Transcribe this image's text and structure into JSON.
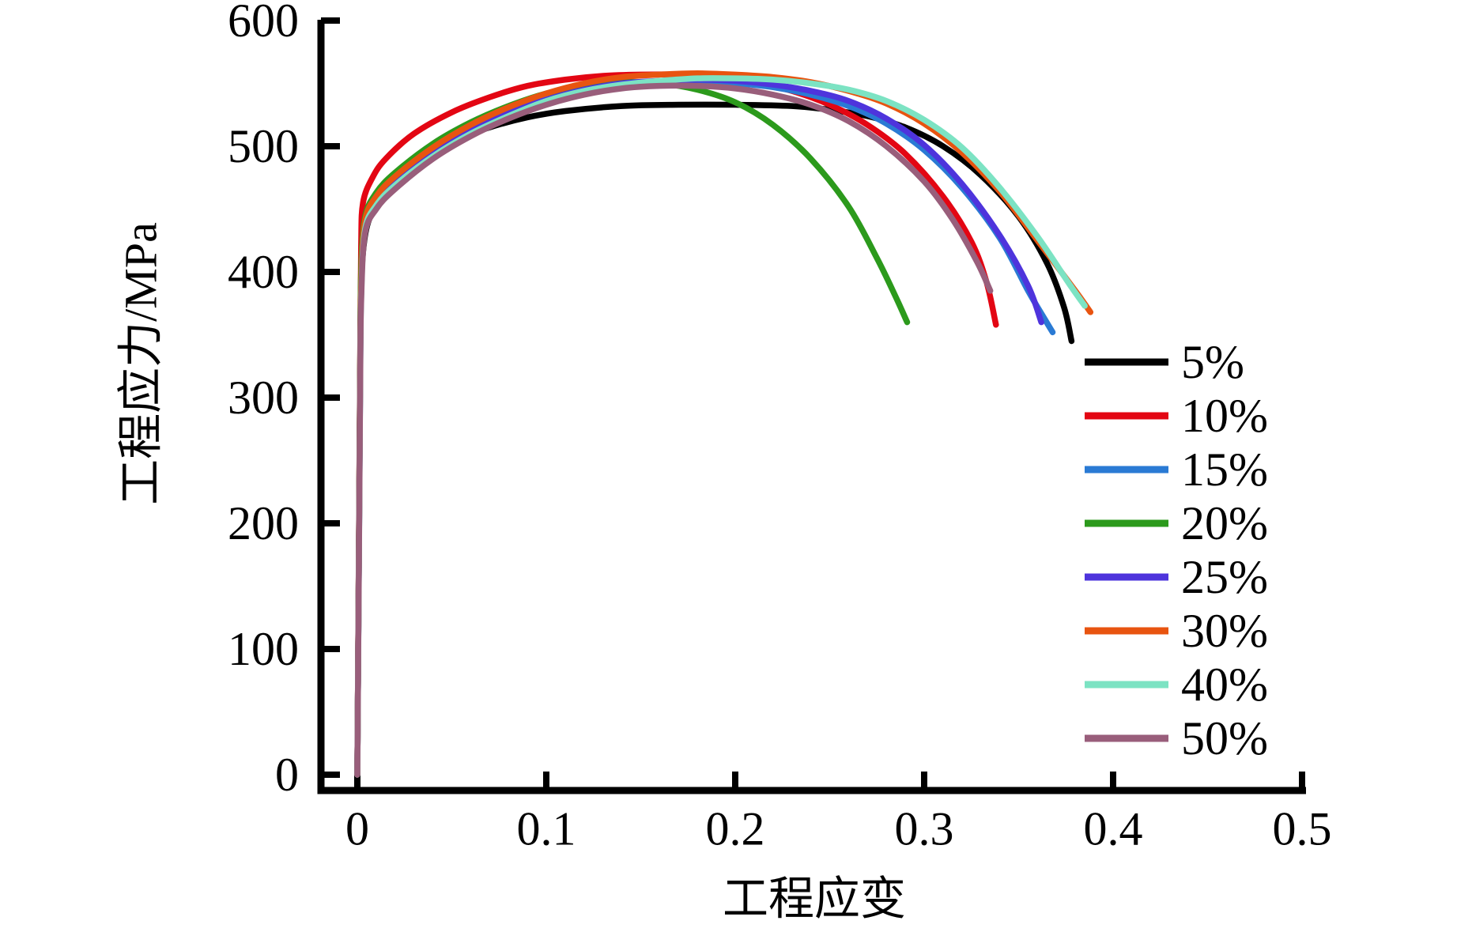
{
  "chart_data": {
    "type": "line",
    "title": "",
    "xlabel": "工程应变",
    "ylabel": "工程应力/MPa",
    "xlim": [
      0,
      0.5
    ],
    "ylim": [
      0,
      600
    ],
    "grid": false,
    "legend_position": "right-middle",
    "x_ticks": [
      0,
      0.1,
      0.2,
      0.3,
      0.4,
      0.5
    ],
    "x_tick_labels": [
      "0",
      "0.1",
      "0.2",
      "0.3",
      "0.4",
      "0.5"
    ],
    "y_ticks": [
      0,
      100,
      200,
      300,
      400,
      500,
      600
    ],
    "y_tick_labels": [
      "0",
      "100",
      "200",
      "300",
      "400",
      "500",
      "600"
    ],
    "series": [
      {
        "name": "5%",
        "color": "#000000",
        "points": [
          [
            0,
            0
          ],
          [
            0.001,
            215
          ],
          [
            0.0015,
            320
          ],
          [
            0.002,
            390
          ],
          [
            0.004,
            428
          ],
          [
            0.008,
            448
          ],
          [
            0.015,
            465
          ],
          [
            0.03,
            487
          ],
          [
            0.05,
            504
          ],
          [
            0.07,
            515
          ],
          [
            0.09,
            523
          ],
          [
            0.11,
            528
          ],
          [
            0.14,
            532
          ],
          [
            0.17,
            533
          ],
          [
            0.2,
            533
          ],
          [
            0.23,
            532
          ],
          [
            0.25,
            529
          ],
          [
            0.27,
            524
          ],
          [
            0.29,
            515
          ],
          [
            0.31,
            500
          ],
          [
            0.33,
            477
          ],
          [
            0.35,
            444
          ],
          [
            0.365,
            407
          ],
          [
            0.374,
            372
          ],
          [
            0.378,
            345
          ]
        ]
      },
      {
        "name": "10%",
        "color": "#e30613",
        "points": [
          [
            0,
            0
          ],
          [
            0.001,
            220
          ],
          [
            0.0015,
            330
          ],
          [
            0.002,
            420
          ],
          [
            0.003,
            455
          ],
          [
            0.008,
            475
          ],
          [
            0.015,
            490
          ],
          [
            0.03,
            510
          ],
          [
            0.05,
            527
          ],
          [
            0.07,
            539
          ],
          [
            0.09,
            548
          ],
          [
            0.11,
            553
          ],
          [
            0.13,
            556
          ],
          [
            0.15,
            557
          ],
          [
            0.17,
            557
          ],
          [
            0.19,
            555
          ],
          [
            0.21,
            551
          ],
          [
            0.23,
            544
          ],
          [
            0.25,
            533
          ],
          [
            0.27,
            517
          ],
          [
            0.29,
            494
          ],
          [
            0.31,
            460
          ],
          [
            0.325,
            424
          ],
          [
            0.333,
            392
          ],
          [
            0.338,
            358
          ]
        ]
      },
      {
        "name": "15%",
        "color": "#2a7ad4",
        "points": [
          [
            0,
            0
          ],
          [
            0.001,
            210
          ],
          [
            0.0015,
            315
          ],
          [
            0.002,
            385
          ],
          [
            0.004,
            438
          ],
          [
            0.01,
            458
          ],
          [
            0.02,
            474
          ],
          [
            0.04,
            497
          ],
          [
            0.06,
            514
          ],
          [
            0.08,
            527
          ],
          [
            0.1,
            537
          ],
          [
            0.12,
            544
          ],
          [
            0.14,
            548
          ],
          [
            0.16,
            551
          ],
          [
            0.18,
            551
          ],
          [
            0.2,
            550
          ],
          [
            0.22,
            547
          ],
          [
            0.24,
            541
          ],
          [
            0.26,
            532
          ],
          [
            0.28,
            518
          ],
          [
            0.3,
            497
          ],
          [
            0.32,
            467
          ],
          [
            0.34,
            427
          ],
          [
            0.355,
            385
          ],
          [
            0.364,
            362
          ],
          [
            0.368,
            352
          ]
        ]
      },
      {
        "name": "20%",
        "color": "#2c9a1c",
        "points": [
          [
            0,
            0
          ],
          [
            0.001,
            215
          ],
          [
            0.0015,
            325
          ],
          [
            0.002,
            400
          ],
          [
            0.004,
            443
          ],
          [
            0.01,
            463
          ],
          [
            0.02,
            479
          ],
          [
            0.04,
            502
          ],
          [
            0.06,
            519
          ],
          [
            0.08,
            532
          ],
          [
            0.1,
            542
          ],
          [
            0.12,
            548
          ],
          [
            0.14,
            551
          ],
          [
            0.16,
            550
          ],
          [
            0.18,
            545
          ],
          [
            0.2,
            535
          ],
          [
            0.22,
            517
          ],
          [
            0.24,
            490
          ],
          [
            0.26,
            452
          ],
          [
            0.275,
            411
          ],
          [
            0.285,
            380
          ],
          [
            0.291,
            360
          ]
        ]
      },
      {
        "name": "25%",
        "color": "#4e34dc",
        "points": [
          [
            0,
            0
          ],
          [
            0.001,
            208
          ],
          [
            0.0015,
            312
          ],
          [
            0.002,
            382
          ],
          [
            0.004,
            435
          ],
          [
            0.01,
            455
          ],
          [
            0.02,
            471
          ],
          [
            0.04,
            494
          ],
          [
            0.06,
            512
          ],
          [
            0.08,
            526
          ],
          [
            0.1,
            537
          ],
          [
            0.12,
            545
          ],
          [
            0.14,
            550
          ],
          [
            0.16,
            552
          ],
          [
            0.18,
            553
          ],
          [
            0.2,
            552
          ],
          [
            0.22,
            549
          ],
          [
            0.24,
            544
          ],
          [
            0.26,
            536
          ],
          [
            0.28,
            522
          ],
          [
            0.3,
            501
          ],
          [
            0.32,
            470
          ],
          [
            0.34,
            429
          ],
          [
            0.355,
            389
          ],
          [
            0.362,
            360
          ]
        ]
      },
      {
        "name": "30%",
        "color": "#e85410",
        "points": [
          [
            0,
            0
          ],
          [
            0.001,
            212
          ],
          [
            0.0015,
            318
          ],
          [
            0.002,
            388
          ],
          [
            0.004,
            440
          ],
          [
            0.01,
            460
          ],
          [
            0.02,
            476
          ],
          [
            0.04,
            499
          ],
          [
            0.06,
            517
          ],
          [
            0.08,
            531
          ],
          [
            0.1,
            542
          ],
          [
            0.12,
            550
          ],
          [
            0.14,
            555
          ],
          [
            0.16,
            557
          ],
          [
            0.18,
            558
          ],
          [
            0.2,
            557
          ],
          [
            0.22,
            555
          ],
          [
            0.24,
            551
          ],
          [
            0.26,
            544
          ],
          [
            0.28,
            534
          ],
          [
            0.3,
            518
          ],
          [
            0.32,
            495
          ],
          [
            0.34,
            464
          ],
          [
            0.36,
            425
          ],
          [
            0.38,
            385
          ],
          [
            0.388,
            368
          ]
        ]
      },
      {
        "name": "40%",
        "color": "#7ce3c3",
        "points": [
          [
            0,
            0
          ],
          [
            0.001,
            205
          ],
          [
            0.0015,
            308
          ],
          [
            0.002,
            378
          ],
          [
            0.004,
            433
          ],
          [
            0.01,
            453
          ],
          [
            0.02,
            469
          ],
          [
            0.04,
            492
          ],
          [
            0.06,
            510
          ],
          [
            0.08,
            524
          ],
          [
            0.1,
            536
          ],
          [
            0.12,
            544
          ],
          [
            0.14,
            549
          ],
          [
            0.16,
            552
          ],
          [
            0.18,
            554
          ],
          [
            0.2,
            554
          ],
          [
            0.22,
            553
          ],
          [
            0.24,
            550
          ],
          [
            0.26,
            545
          ],
          [
            0.28,
            536
          ],
          [
            0.3,
            521
          ],
          [
            0.32,
            499
          ],
          [
            0.34,
            467
          ],
          [
            0.36,
            428
          ],
          [
            0.377,
            390
          ],
          [
            0.385,
            373
          ]
        ]
      },
      {
        "name": "50%",
        "color": "#995e7b",
        "points": [
          [
            0,
            0
          ],
          [
            0.001,
            202
          ],
          [
            0.0015,
            305
          ],
          [
            0.002,
            375
          ],
          [
            0.004,
            430
          ],
          [
            0.01,
            450
          ],
          [
            0.02,
            466
          ],
          [
            0.04,
            490
          ],
          [
            0.06,
            508
          ],
          [
            0.08,
            522
          ],
          [
            0.1,
            533
          ],
          [
            0.12,
            541
          ],
          [
            0.14,
            546
          ],
          [
            0.16,
            548
          ],
          [
            0.18,
            548
          ],
          [
            0.2,
            546
          ],
          [
            0.22,
            541
          ],
          [
            0.24,
            533
          ],
          [
            0.26,
            520
          ],
          [
            0.28,
            500
          ],
          [
            0.3,
            472
          ],
          [
            0.315,
            442
          ],
          [
            0.328,
            408
          ],
          [
            0.335,
            385
          ]
        ]
      }
    ]
  }
}
